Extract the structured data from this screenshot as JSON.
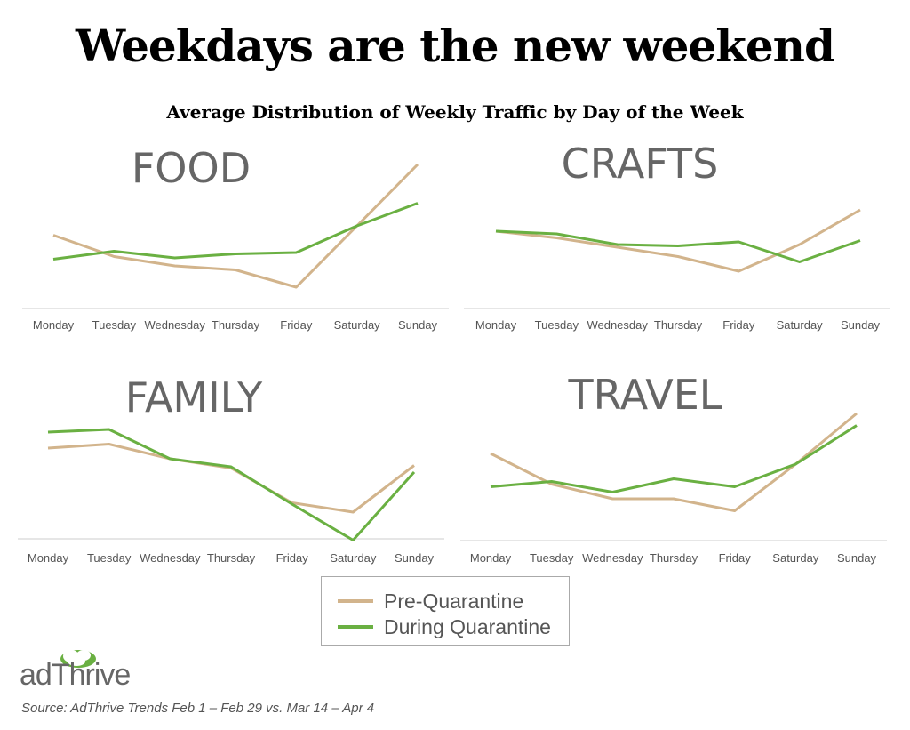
{
  "title": "Weekdays are the new weekend",
  "subtitle": "Average Distribution of Weekly Traffic by Day of the Week",
  "colors": {
    "pre": "#d2b48c",
    "during": "#6ab042",
    "axis": "#dddddd",
    "panel_title": "#666666",
    "tick": "#555555"
  },
  "legend": {
    "pre_label": "Pre-Quarantine",
    "during_label": "During Quarantine"
  },
  "logo": {
    "text": "adThrive",
    "icon": "tree-icon"
  },
  "source": "Source: AdThrive Trends Feb 1 – Feb 29 vs. Mar 14 – Apr 4",
  "chart_data": [
    {
      "type": "line",
      "title": "FOOD",
      "categories": [
        "Monday",
        "Tuesday",
        "Wednesday",
        "Thursday",
        "Friday",
        "Saturday",
        "Sunday"
      ],
      "ylim": [
        0,
        100
      ],
      "series": [
        {
          "name": "Pre-Quarantine",
          "values": [
            47,
            31,
            24,
            21,
            8,
            54,
            100
          ]
        },
        {
          "name": "During Quarantine",
          "values": [
            29,
            35,
            30,
            33,
            34,
            54,
            71
          ]
        }
      ]
    },
    {
      "type": "line",
      "title": "CRAFTS",
      "categories": [
        "Monday",
        "Tuesday",
        "Wednesday",
        "Thursday",
        "Friday",
        "Saturday",
        "Sunday"
      ],
      "ylim": [
        0,
        100
      ],
      "series": [
        {
          "name": "Pre-Quarantine",
          "values": [
            50,
            45,
            38,
            31,
            20,
            40,
            66
          ]
        },
        {
          "name": "During Quarantine",
          "values": [
            50,
            48,
            40,
            39,
            42,
            27,
            43
          ]
        }
      ]
    },
    {
      "type": "line",
      "title": "FAMILY",
      "categories": [
        "Monday",
        "Tuesday",
        "Wednesday",
        "Thursday",
        "Friday",
        "Saturday",
        "Sunday"
      ],
      "ylim": [
        0,
        100
      ],
      "series": [
        {
          "name": "Pre-Quarantine",
          "values": [
            74,
            77,
            66,
            59,
            33,
            26,
            61
          ]
        },
        {
          "name": "During Quarantine",
          "values": [
            86,
            88,
            66,
            60,
            32,
            5,
            56
          ]
        }
      ]
    },
    {
      "type": "line",
      "title": "TRAVEL",
      "categories": [
        "Monday",
        "Tuesday",
        "Wednesday",
        "Thursday",
        "Friday",
        "Saturday",
        "Sunday"
      ],
      "ylim": [
        0,
        100
      ],
      "series": [
        {
          "name": "Pre-Quarantine",
          "values": [
            70,
            47,
            36,
            36,
            27,
            62,
            100
          ]
        },
        {
          "name": "During Quarantine",
          "values": [
            45,
            49,
            41,
            51,
            45,
            62,
            91
          ]
        }
      ]
    }
  ]
}
